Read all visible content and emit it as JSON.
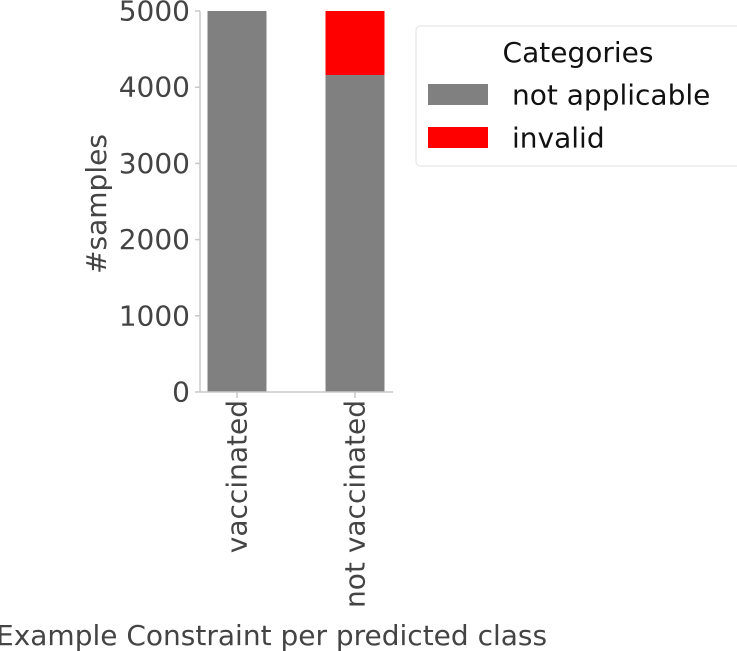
{
  "chart_data": {
    "type": "bar",
    "stacked": true,
    "categories": [
      "vaccinated",
      "not vaccinated"
    ],
    "series": [
      {
        "name": "not applicable",
        "color": "#808080",
        "values": [
          5000,
          4160
        ]
      },
      {
        "name": "invalid",
        "color": "#ff0000",
        "values": [
          0,
          840
        ]
      }
    ],
    "xlabel": "Example Constraint per predicted class",
    "ylabel": "#samples",
    "ylim": [
      0,
      5000
    ],
    "yticks": [
      0,
      1000,
      2000,
      3000,
      4000,
      5000
    ],
    "legend": {
      "title": "Categories",
      "placement": "top-right"
    },
    "grid": false
  }
}
